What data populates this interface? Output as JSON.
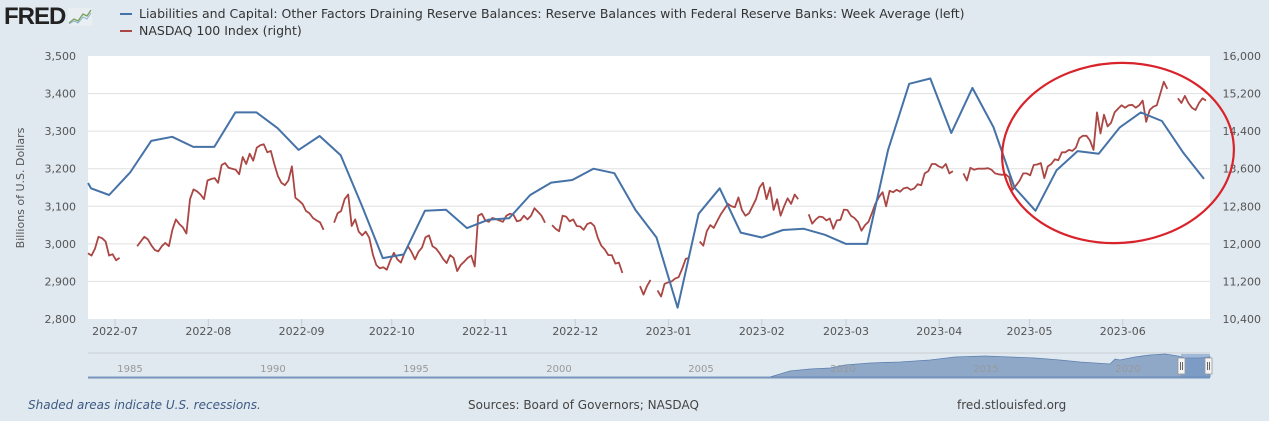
{
  "logo": {
    "text": "FRED",
    "icon": "chart-line-icon"
  },
  "legend": [
    {
      "label": "Liabilities and Capital: Other Factors Draining Reserve Balances: Reserve Balances with Federal Reserve Banks: Week Average (left)",
      "color": "#4572a7"
    },
    {
      "label": "NASDAQ 100 Index (right)",
      "color": "#aa4643"
    }
  ],
  "footer": {
    "note": "Shaded areas indicate U.S. recessions.",
    "sources": "Sources: Board of Governors; NASDAQ",
    "url": "fred.stlouisfed.org"
  },
  "navigator": {
    "year_labels": [
      "1985",
      "1990",
      "1995",
      "2000",
      "2005",
      "2010",
      "2015",
      "2020"
    ]
  },
  "annotation": {
    "type": "ellipse",
    "color": "#d9232b",
    "description": "red hand-drawn circle around May–June 2023"
  },
  "chart_data": {
    "type": "line",
    "title": "",
    "xlabel": "",
    "ylabel": "Billions of U.S. Dollars",
    "x_tick_labels": [
      "2022-07",
      "2022-08",
      "2022-09",
      "2022-10",
      "2022-11",
      "2022-12",
      "2023-01",
      "2023-02",
      "2023-03",
      "2023-04",
      "2023-05",
      "2023-06"
    ],
    "y_left": {
      "ticks": [
        "2,800",
        "2,900",
        "3,000",
        "3,100",
        "3,200",
        "3,300",
        "3,400",
        "3,500"
      ],
      "range": [
        2800,
        3500
      ]
    },
    "y_right": {
      "ticks": [
        "10,400",
        "11,200",
        "12,000",
        "12,800",
        "13,600",
        "14,400",
        "15,200",
        "16,000"
      ],
      "range": [
        10400,
        16000
      ]
    },
    "x_range": [
      "2022-06-22",
      "2023-06-30"
    ],
    "grid": true,
    "legend_position": "top",
    "series": [
      {
        "name": "Liabilities and Capital: Other Factors Draining Reserve Balances: Reserve Balances with Federal Reserve Banks: Week Average (left)",
        "axis": "left",
        "color": "#4572a7",
        "x": [
          "2022-06-22",
          "2022-06-23",
          "2022-06-29",
          "2022-07-06",
          "2022-07-13",
          "2022-07-20",
          "2022-07-27",
          "2022-08-03",
          "2022-08-10",
          "2022-08-17",
          "2022-08-24",
          "2022-08-31",
          "2022-09-07",
          "2022-09-14",
          "2022-09-21",
          "2022-09-28",
          "2022-10-05",
          "2022-10-12",
          "2022-10-19",
          "2022-10-26",
          "2022-11-02",
          "2022-11-09",
          "2022-11-16",
          "2022-11-23",
          "2022-11-30",
          "2022-12-07",
          "2022-12-14",
          "2022-12-21",
          "2022-12-28",
          "2023-01-04",
          "2023-01-11",
          "2023-01-18",
          "2023-01-25",
          "2023-02-01",
          "2023-02-08",
          "2023-02-15",
          "2023-02-22",
          "2023-03-01",
          "2023-03-08",
          "2023-03-15",
          "2023-03-22",
          "2023-03-29",
          "2023-04-05",
          "2023-04-12",
          "2023-04-19",
          "2023-04-26",
          "2023-05-03",
          "2023-05-10",
          "2023-05-17",
          "2023-05-24",
          "2023-05-31",
          "2023-06-07",
          "2023-06-14",
          "2023-06-21",
          "2023-06-28"
        ],
        "values": [
          3162,
          3148,
          3130,
          3190,
          3274,
          3285,
          3258,
          3258,
          3350,
          3350,
          3308,
          3250,
          3287,
          3236,
          3103,
          2962,
          2972,
          3088,
          3091,
          3042,
          3064,
          3068,
          3130,
          3163,
          3170,
          3200,
          3188,
          3090,
          3017,
          2830,
          3080,
          3148,
          3030,
          3017,
          3037,
          3040,
          3024,
          3000,
          3000,
          3250,
          3426,
          3440,
          3295,
          3415,
          3311,
          3150,
          3088,
          3196,
          3247,
          3240,
          3310,
          3350,
          3327,
          3244,
          3173
        ]
      },
      {
        "name": "NASDAQ 100 Index (right)",
        "axis": "right",
        "color": "#aa4643",
        "values": [
          11800,
          11750,
          11900,
          12150,
          12120,
          12050,
          11750,
          11780,
          11650,
          11700,
          null,
          null,
          null,
          null,
          11950,
          12050,
          12150,
          12100,
          11970,
          11870,
          11840,
          11950,
          12020,
          11950,
          12300,
          12520,
          12420,
          12350,
          12220,
          12950,
          13160,
          13120,
          13050,
          12950,
          13350,
          13380,
          13400,
          13300,
          13680,
          13720,
          13620,
          13600,
          13580,
          13480,
          13850,
          13700,
          13920,
          13770,
          14050,
          14100,
          14120,
          13950,
          13980,
          13700,
          13450,
          13300,
          13250,
          13350,
          13650,
          12980,
          12920,
          12850,
          12700,
          12650,
          12550,
          12500,
          12460,
          12300,
          null,
          null,
          12450,
          12650,
          12700,
          12950,
          13050,
          12380,
          12520,
          12260,
          12180,
          12260,
          12130,
          11780,
          11550,
          11480,
          11500,
          11450,
          11650,
          11810,
          11670,
          11600,
          11800,
          11950,
          11830,
          11670,
          11830,
          11920,
          12140,
          12180,
          11950,
          11900,
          11800,
          11680,
          11590,
          11760,
          11700,
          11420,
          11550,
          11620,
          11700,
          11750,
          11520,
          12600,
          12640,
          12500,
          12470,
          12550,
          12530,
          12500,
          12470,
          12600,
          12640,
          12620,
          12480,
          12500,
          12600,
          12520,
          12600,
          12760,
          12680,
          12600,
          12450,
          null,
          12400,
          12320,
          12270,
          12600,
          12580,
          12480,
          12520,
          12380,
          12370,
          12300,
          12420,
          12450,
          12380,
          12130,
          11960,
          11880,
          11760,
          11760,
          11580,
          11600,
          11380,
          null,
          null,
          null,
          null,
          11100,
          10920,
          11100,
          11230,
          null,
          11010,
          10880,
          11150,
          11180,
          11200,
          11260,
          11290,
          11470,
          11680,
          11700,
          null,
          null,
          12050,
          11960,
          12270,
          12400,
          12340,
          12490,
          12630,
          12740,
          12850,
          12800,
          12780,
          12990,
          12720,
          12600,
          12650,
          12800,
          12950,
          13200,
          13300,
          12950,
          13200,
          12720,
          12950,
          12600,
          12800,
          12970,
          12850,
          13050,
          12950,
          null,
          null,
          12630,
          12430,
          12520,
          12580,
          12570,
          12500,
          12540,
          12320,
          12500,
          12510,
          12730,
          12720,
          12600,
          12550,
          12470,
          12280,
          12400,
          12470,
          12660,
          12860,
          13000,
          13100,
          12800,
          13130,
          13100,
          13150,
          13110,
          13180,
          13200,
          13150,
          13180,
          13270,
          13250,
          13500,
          13550,
          13700,
          13700,
          13650,
          13620,
          13700,
          13500,
          13550,
          null,
          null,
          13500,
          13350,
          13620,
          13580,
          13600,
          13600,
          13600,
          13610,
          13580,
          13500,
          13480,
          13470,
          13480,
          13420,
          13150,
          13250,
          13350,
          13500,
          13500,
          13460,
          13680,
          13690,
          13720,
          13400,
          13650,
          13700,
          13800,
          13780,
          13950,
          13950,
          14000,
          13980,
          14050,
          14250,
          14300,
          14300,
          14200,
          14000,
          14800,
          14350,
          14750,
          14500,
          14580,
          14800,
          14880,
          14950,
          14900,
          14950,
          14960,
          14900,
          14950,
          15050,
          14600,
          14850,
          14920,
          14950,
          15200,
          15450,
          15300,
          null,
          null,
          15100,
          15000,
          15150,
          15000,
          14900,
          14850,
          15000,
          15100,
          15050
        ],
        "gap_note": "null values indicate gaps in the line"
      }
    ]
  }
}
